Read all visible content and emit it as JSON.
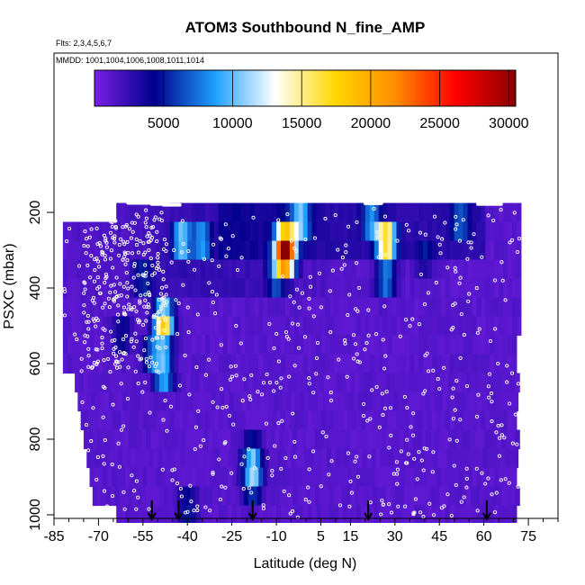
{
  "chart_data": {
    "type": "heatmap",
    "title": "ATOM3 Southbound N_fine_AMP",
    "flights_note": "Flts: 2,3,4,5,6,7",
    "mmdd_note": "MMDD: 1001,1004,1006,1008,1011,1014",
    "xlabel": "Latitude (deg N)",
    "ylabel": "PSXC (mbar)",
    "xlim": [
      -85,
      85
    ],
    "ylim": [
      1020,
      0
    ],
    "x_ticks": [
      -85,
      -70,
      -55,
      -40,
      -25,
      -10,
      5,
      15,
      30,
      45,
      60,
      75
    ],
    "y_ticks": [
      200,
      400,
      600,
      800,
      1000
    ],
    "colorbar": {
      "min": 0,
      "max": 30500,
      "ticks": [
        5000,
        10000,
        15000,
        20000,
        25000,
        30000
      ],
      "colors": [
        "#7a1fe6",
        "#00008b",
        "#1ea0ff",
        "#ffffff",
        "#ffd700",
        "#ff8c00",
        "#ff0000",
        "#8b0000"
      ]
    },
    "lat_range": [
      -82,
      72
    ],
    "pressure_bins": [
      175,
      225,
      275,
      325,
      375,
      425,
      475,
      525,
      575,
      625,
      675,
      725,
      775,
      825,
      875,
      925,
      975,
      1020
    ],
    "hotspots": [
      {
        "lat": -42,
        "p": 275,
        "value": 12000
      },
      {
        "lat": -35,
        "p": 275,
        "value": 9000
      },
      {
        "lat": -7,
        "p": 275,
        "value": 22000
      },
      {
        "lat": -7,
        "p": 325,
        "value": 26000
      },
      {
        "lat": -2,
        "p": 225,
        "value": 11000
      },
      {
        "lat": -10,
        "p": 375,
        "value": 6500
      },
      {
        "lat": 27,
        "p": 275,
        "value": 21000
      },
      {
        "lat": 22,
        "p": 225,
        "value": 8000
      },
      {
        "lat": 27,
        "p": 375,
        "value": 9500
      },
      {
        "lat": 52,
        "p": 225,
        "value": 6000
      },
      {
        "lat": -48,
        "p": 475,
        "value": 15000
      },
      {
        "lat": -48,
        "p": 525,
        "value": 11000
      },
      {
        "lat": -48,
        "p": 625,
        "value": 12000
      },
      {
        "lat": -52,
        "p": 575,
        "value": 7000
      },
      {
        "lat": -55,
        "p": 375,
        "value": 5500
      },
      {
        "lat": -18,
        "p": 875,
        "value": 9000
      },
      {
        "lat": -18,
        "p": 925,
        "value": 7000
      },
      {
        "lat": -18,
        "p": 825,
        "value": 5000
      },
      {
        "lat": -40,
        "p": 975,
        "value": 5000
      },
      {
        "lat": -62,
        "p": 525,
        "value": 4500
      },
      {
        "lat": 40,
        "p": 325,
        "value": 3500
      }
    ],
    "arrows_lat": [
      -52,
      -43,
      -18,
      21,
      61
    ]
  }
}
